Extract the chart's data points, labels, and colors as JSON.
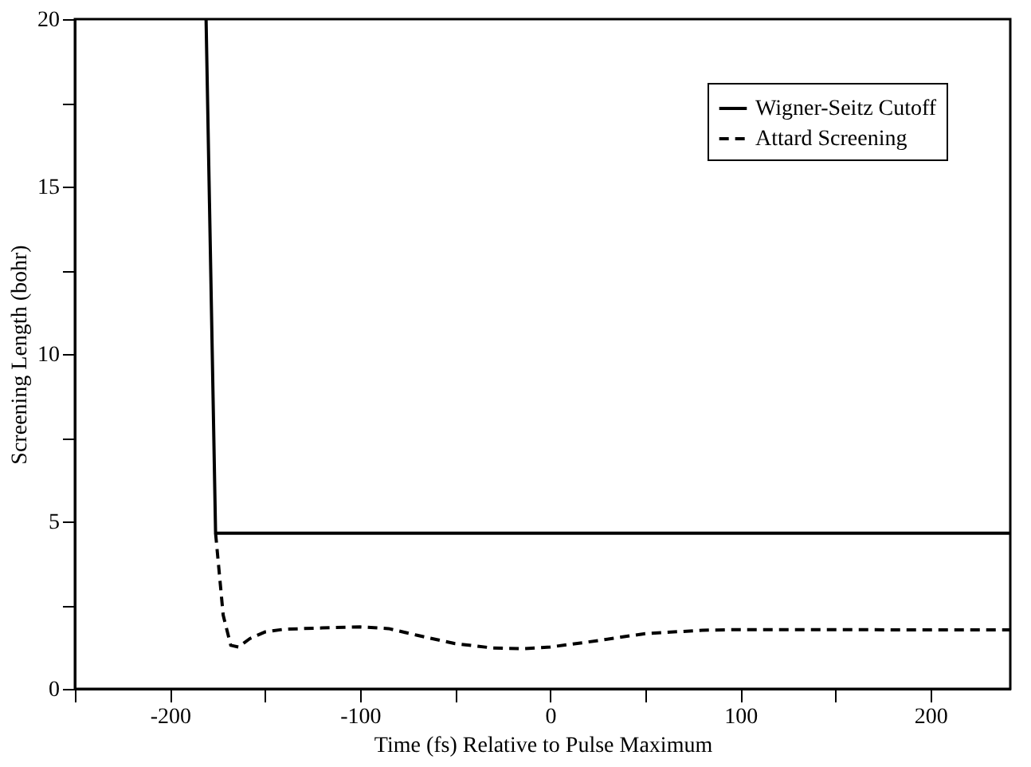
{
  "chart_data": {
    "type": "line",
    "xlabel": "Time (fs) Relative to Pulse Maximum",
    "ylabel": "Screening Length (bohr)",
    "xlim": [
      -250,
      242
    ],
    "ylim": [
      0,
      20
    ],
    "xticks": [
      {
        "value": -250,
        "label": null
      },
      -200,
      {
        "value": -150,
        "label": null
      },
      -100,
      {
        "value": -50,
        "label": null
      },
      0,
      {
        "value": 50,
        "label": null
      },
      100,
      {
        "value": 150,
        "label": null
      },
      200
    ],
    "yticks": [
      0,
      {
        "value": 2.5,
        "label": null
      },
      5,
      {
        "value": 7.5,
        "label": null
      },
      10,
      {
        "value": 12.5,
        "label": null
      },
      15,
      {
        "value": 17.5,
        "label": null
      },
      20
    ],
    "grid": false,
    "legend": "top right",
    "marker": "none",
    "series": [
      {
        "name": "Wigner-Seitz Cutoff",
        "color": "#000000",
        "line_style": "solid",
        "x": [
          -181,
          -176,
          242
        ],
        "values": [
          20,
          4.65,
          4.65
        ]
      },
      {
        "name": "Attard Screening",
        "color": "#000000",
        "line_style": "dashed",
        "x": [
          -176,
          -172,
          -168,
          -164,
          -158,
          -150,
          -140,
          -120,
          -100,
          -85,
          -70,
          -50,
          -30,
          -14,
          0,
          20,
          50,
          80,
          100,
          150,
          200,
          242
        ],
        "values": [
          4.65,
          2.2,
          1.3,
          1.25,
          1.5,
          1.7,
          1.78,
          1.82,
          1.85,
          1.8,
          1.6,
          1.35,
          1.22,
          1.2,
          1.25,
          1.4,
          1.65,
          1.75,
          1.77,
          1.77,
          1.76,
          1.76
        ]
      }
    ]
  }
}
